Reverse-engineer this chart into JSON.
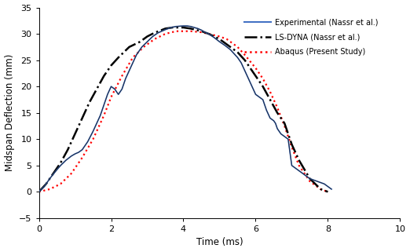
{
  "title": "",
  "xlabel": "Time (ms)",
  "ylabel": "Midspan Deflection (mm)",
  "xlim": [
    0.0,
    10.0
  ],
  "ylim": [
    -5.0,
    35.0
  ],
  "xticks": [
    0.0,
    2.0,
    4.0,
    6.0,
    8.0,
    10.0
  ],
  "yticks": [
    -5.0,
    0.0,
    5.0,
    10.0,
    15.0,
    20.0,
    25.0,
    30.0,
    35.0
  ],
  "legend_labels": [
    "Experimental (Nassr et al.)",
    "LS-DYNA (Nassr et al.)",
    "Abaqus (Present Study)"
  ],
  "exp_color": "#4472C4",
  "exp_line_color": "#000000",
  "ls_dyna_color": "#000000",
  "abaqus_color": "#FF0000",
  "background_color": "#ffffff",
  "t_exp": [
    0.0,
    0.15,
    0.3,
    0.45,
    0.6,
    0.75,
    0.9,
    1.0,
    1.1,
    1.2,
    1.35,
    1.5,
    1.7,
    1.9,
    2.0,
    2.1,
    2.15,
    2.2,
    2.3,
    2.4,
    2.5,
    2.6,
    2.7,
    2.85,
    3.0,
    3.15,
    3.3,
    3.5,
    3.65,
    3.8,
    4.0,
    4.1,
    4.2,
    4.3,
    4.4,
    4.5,
    4.6,
    4.7,
    4.85,
    5.0,
    5.15,
    5.3,
    5.5,
    5.6,
    5.7,
    5.8,
    5.9,
    6.0,
    6.1,
    6.2,
    6.3,
    6.4,
    6.5,
    6.55,
    6.6,
    6.65,
    6.7,
    6.8,
    6.9,
    7.0,
    7.1,
    7.2,
    7.3,
    7.5,
    7.7,
    7.9,
    8.1
  ],
  "d_exp": [
    0.0,
    1.0,
    2.5,
    3.8,
    5.0,
    6.0,
    6.8,
    7.2,
    7.5,
    8.0,
    9.5,
    11.5,
    14.5,
    18.5,
    20.0,
    19.5,
    19.0,
    18.5,
    19.5,
    21.5,
    23.0,
    24.5,
    26.0,
    27.5,
    28.5,
    29.5,
    30.2,
    30.8,
    31.2,
    31.4,
    31.5,
    31.5,
    31.4,
    31.2,
    31.0,
    30.7,
    30.3,
    30.0,
    29.3,
    28.5,
    27.8,
    27.0,
    25.5,
    24.5,
    23.0,
    21.5,
    20.0,
    18.5,
    18.0,
    17.5,
    15.5,
    14.0,
    13.5,
    13.0,
    12.0,
    11.5,
    11.0,
    10.5,
    10.0,
    5.0,
    4.5,
    4.0,
    3.5,
    2.5,
    2.0,
    1.5,
    0.5
  ],
  "t_ls": [
    0.0,
    0.2,
    0.4,
    0.6,
    0.8,
    1.0,
    1.2,
    1.4,
    1.6,
    1.8,
    2.0,
    2.2,
    2.5,
    2.8,
    3.0,
    3.2,
    3.5,
    3.7,
    4.0,
    4.2,
    4.5,
    4.7,
    5.0,
    5.2,
    5.5,
    5.7,
    6.0,
    6.2,
    6.4,
    6.6,
    6.8,
    7.0,
    7.2,
    7.5,
    7.8,
    8.0
  ],
  "d_ls": [
    0.0,
    1.5,
    3.5,
    5.5,
    8.0,
    11.0,
    14.0,
    17.0,
    19.5,
    22.0,
    24.0,
    25.5,
    27.5,
    28.5,
    29.5,
    30.2,
    31.0,
    31.2,
    31.2,
    31.0,
    30.5,
    30.0,
    29.0,
    28.0,
    26.5,
    25.0,
    22.0,
    20.0,
    17.5,
    15.0,
    13.0,
    9.0,
    6.0,
    2.5,
    0.5,
    0.0
  ],
  "t_ab": [
    0.0,
    0.3,
    0.6,
    0.9,
    1.2,
    1.5,
    1.8,
    2.0,
    2.3,
    2.6,
    2.9,
    3.2,
    3.5,
    3.8,
    4.0,
    4.2,
    4.5,
    4.7,
    5.0,
    5.2,
    5.5,
    5.7,
    6.0,
    6.2,
    6.4,
    6.6,
    6.8,
    7.0,
    7.2,
    7.5,
    7.8,
    8.0
  ],
  "d_ab": [
    0.0,
    0.5,
    1.5,
    3.5,
    6.5,
    10.0,
    14.5,
    18.0,
    22.0,
    25.5,
    27.5,
    29.0,
    30.0,
    30.5,
    30.5,
    30.5,
    30.3,
    30.0,
    29.5,
    29.0,
    27.5,
    26.0,
    23.5,
    21.5,
    19.0,
    16.0,
    12.5,
    8.5,
    5.0,
    2.0,
    0.5,
    0.0
  ]
}
